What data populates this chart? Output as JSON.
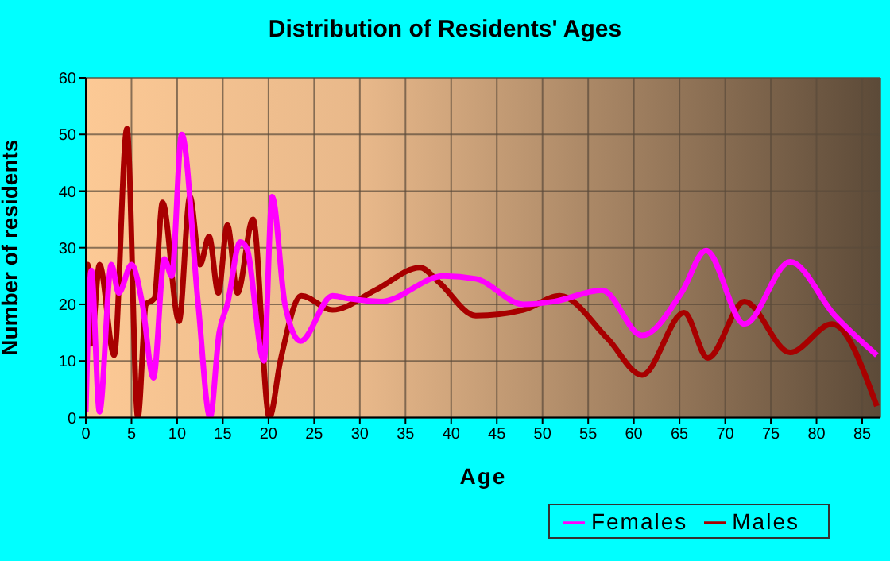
{
  "chart_data": {
    "type": "line",
    "title": "Distribution of Residents' Ages",
    "xlabel": "Age",
    "ylabel": "Number of residents",
    "xlim": [
      0,
      87
    ],
    "xticks": [
      0,
      5,
      10,
      15,
      20,
      25,
      30,
      35,
      40,
      45,
      50,
      55,
      60,
      65,
      70,
      75,
      80,
      85
    ],
    "ylim": [
      0,
      60
    ],
    "yticks": [
      0,
      10,
      20,
      30,
      40,
      50,
      60
    ],
    "grid": true,
    "legend": "bottom right",
    "marker": "none",
    "line_style": "solid",
    "series": [
      {
        "name": "Males",
        "color": "#a80000",
        "x": [
          0,
          0.2,
          0.6,
          1.5,
          3.1,
          4.5,
          5.7,
          6.6,
          7.5,
          8.4,
          10.2,
          11.4,
          12.5,
          13.5,
          14.5,
          15.5,
          16.6,
          18.3,
          20.1,
          21.3,
          23.6,
          27,
          31.7,
          36.6,
          38.6,
          42.7,
          47.9,
          51.9,
          57.1,
          60.9,
          65.5,
          68.1,
          72.1,
          77.1,
          81.7,
          86.6
        ],
        "values": [
          16,
          27,
          13,
          27,
          11,
          51,
          0,
          20,
          21,
          38,
          17,
          39,
          27,
          32,
          22,
          34,
          22,
          35,
          0,
          10,
          21.5,
          19,
          22.5,
          26.5,
          24,
          18,
          19,
          21.5,
          14,
          7.5,
          18.5,
          10.5,
          20.5,
          11.5,
          16.5,
          2
        ]
      },
      {
        "name": "Females",
        "color": "#ff00ff",
        "x": [
          0,
          0.6,
          1.5,
          2.8,
          3.6,
          5,
          6.2,
          7.4,
          8.6,
          9.4,
          10.5,
          12.3,
          13.6,
          14.6,
          15.5,
          16.9,
          17.6,
          19.5,
          20.4,
          21.8,
          23.5,
          27,
          28.8,
          32.3,
          39.2,
          42.7,
          47.9,
          51.3,
          56.5,
          60.9,
          65.2,
          67.9,
          72.1,
          77.1,
          82,
          86.6
        ],
        "values": [
          1,
          26,
          1,
          27,
          22,
          27,
          20,
          7,
          28,
          25,
          50,
          20,
          0,
          15,
          20,
          31,
          30,
          10,
          39,
          20,
          13.5,
          21.5,
          21,
          20.5,
          25,
          24.5,
          20,
          20.5,
          22.5,
          14.5,
          22,
          29.5,
          16.5,
          27.5,
          18,
          11
        ]
      }
    ]
  }
}
